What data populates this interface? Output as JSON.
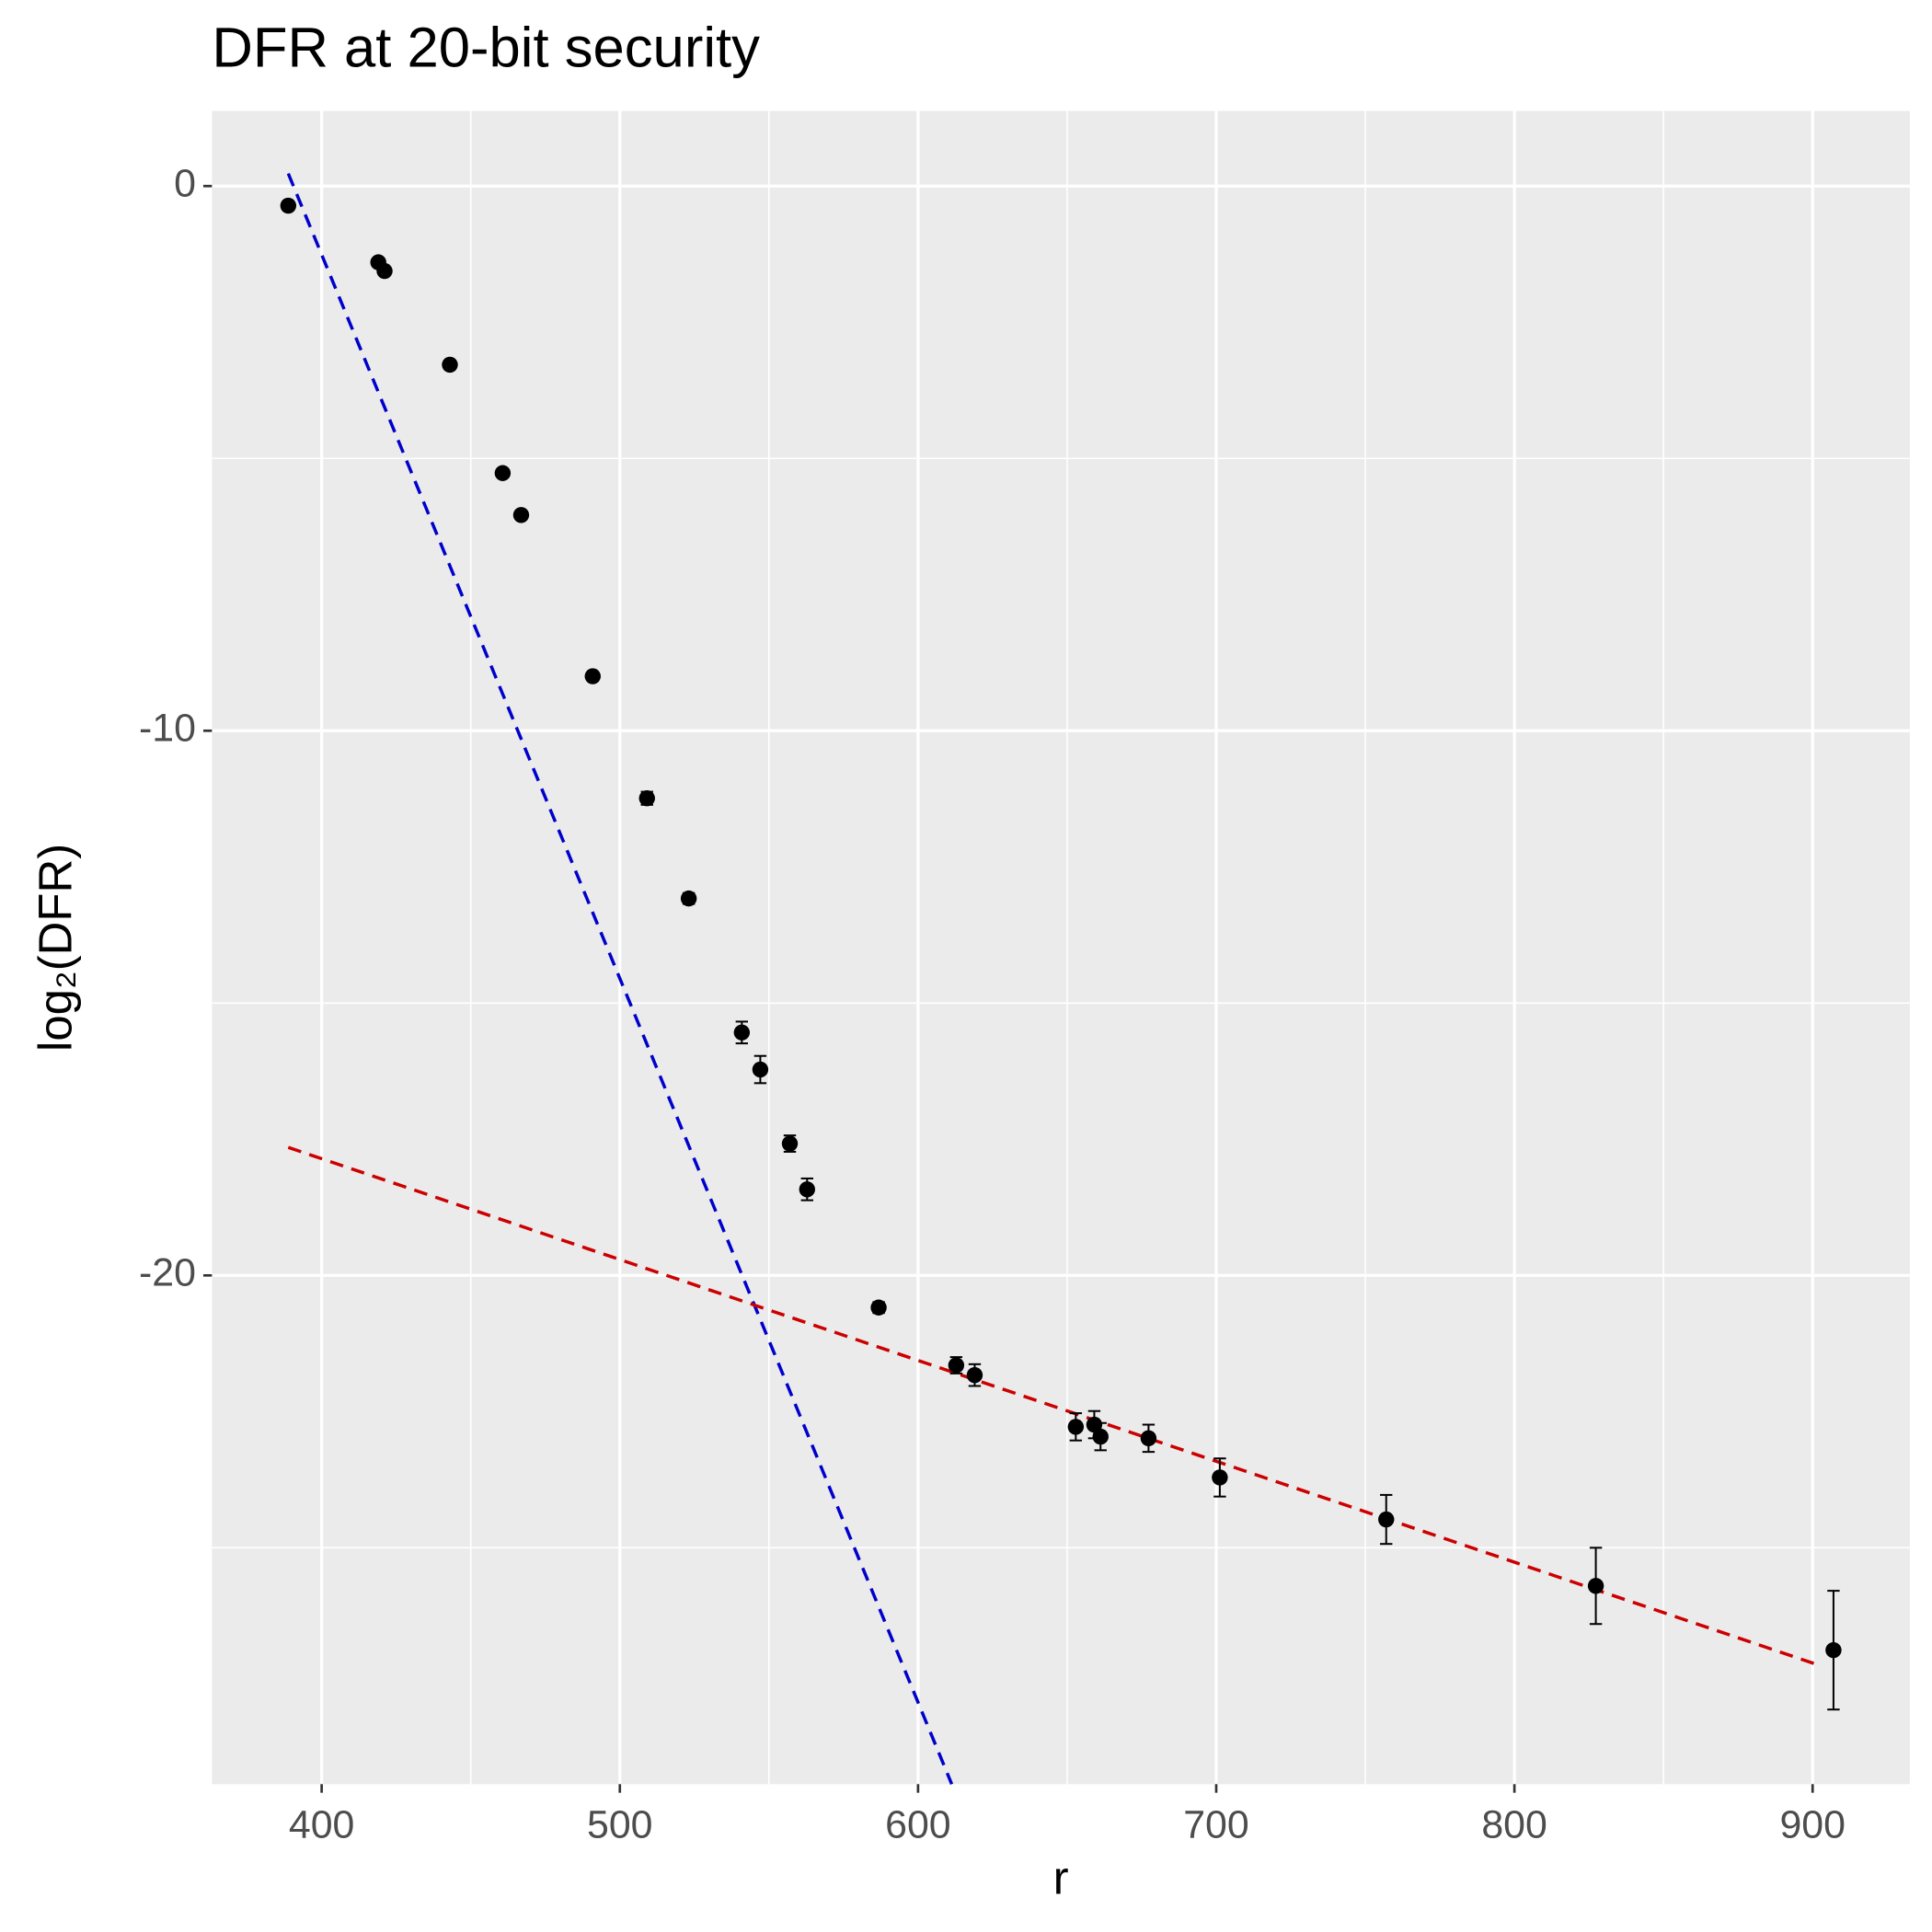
{
  "chart_data": {
    "type": "scatter",
    "title": "DFR at 20-bit security",
    "x_label": "r",
    "y_label": "log₂(DFR)",
    "xlim": [
      363.2,
      932.6
    ],
    "ylim": [
      -29.34,
      1.38
    ],
    "xticks": [
      400,
      500,
      600,
      700,
      800,
      900
    ],
    "yticks": [
      0,
      -10,
      -20
    ],
    "grid": true,
    "point_color": "#000000",
    "x": [
      388.8,
      419.0,
      421.1,
      443.0,
      460.7,
      466.9,
      490.9,
      509.1,
      523.1,
      540.9,
      547.1,
      557.0,
      562.8,
      586.8,
      612.8,
      619.0,
      652.9,
      659.1,
      661.2,
      677.3,
      701.2,
      757.0,
      827.3,
      907.0
    ],
    "values": [
      -0.36,
      -1.4,
      -1.56,
      -3.28,
      -5.27,
      -6.04,
      -9.0,
      -11.24,
      -13.08,
      -15.54,
      -16.22,
      -17.58,
      -18.42,
      -20.59,
      -21.65,
      -21.83,
      -22.78,
      -22.74,
      -22.96,
      -22.99,
      -23.71,
      -24.48,
      -25.7,
      -26.88
    ],
    "errors": [
      0.05,
      0.05,
      0.05,
      0.05,
      0.05,
      0.05,
      0.05,
      0.12,
      0.1,
      0.2,
      0.25,
      0.15,
      0.2,
      0.1,
      0.15,
      0.2,
      0.25,
      0.25,
      0.25,
      0.25,
      0.35,
      0.45,
      0.7,
      1.09
    ],
    "fit_lines": [
      {
        "color": "#0000cc",
        "x": [
          388.8,
          611.3
        ],
        "y": [
          0.23,
          -29.34
        ]
      },
      {
        "color": "#cc0000",
        "x": [
          388.8,
          902.9
        ],
        "y": [
          -17.65,
          -27.17
        ]
      }
    ]
  }
}
